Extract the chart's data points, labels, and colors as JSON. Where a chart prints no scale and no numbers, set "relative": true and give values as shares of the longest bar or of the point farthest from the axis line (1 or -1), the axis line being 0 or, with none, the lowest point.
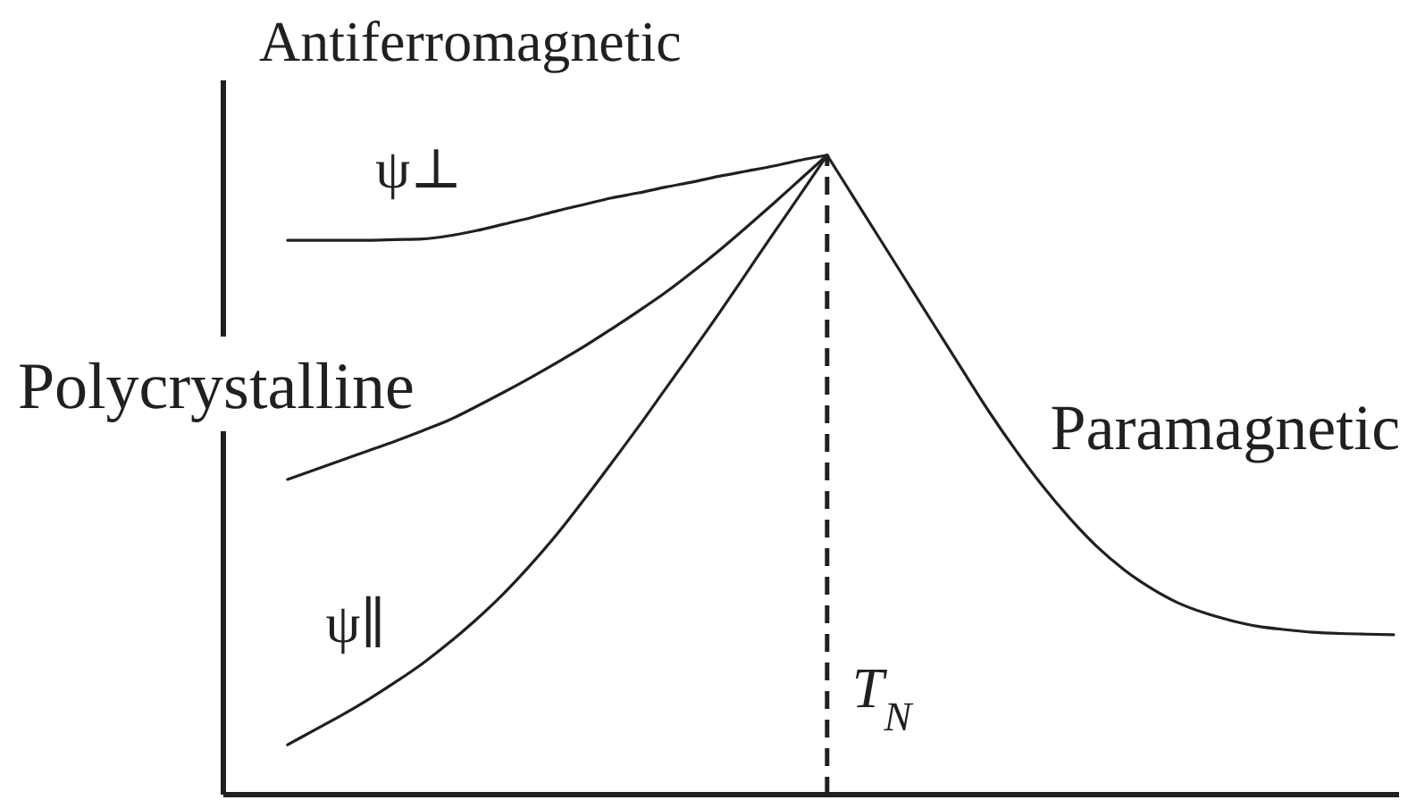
{
  "chart_data": {
    "type": "line",
    "title": "Antiferromagnetic",
    "relative": true,
    "marker": "none",
    "line_style": "solid",
    "categories": [
      null,
      null,
      null,
      null,
      null,
      null,
      null,
      null,
      null,
      null,
      null,
      null,
      null,
      null,
      null,
      null,
      null,
      null,
      null,
      null,
      null,
      null,
      null,
      null,
      null,
      null,
      null,
      null,
      null,
      null,
      null,
      null,
      null,
      null,
      null,
      null,
      null,
      null,
      null,
      null,
      null,
      null
    ],
    "series": [
      {
        "name": "ψ⊥",
        "color": "#231f20",
        "values": [
          0.867,
          0.867,
          0.867,
          0.867,
          0.868,
          0.869,
          0.874,
          0.882,
          0.892,
          0.902,
          0.913,
          0.923,
          0.933,
          0.941,
          0.95,
          0.958,
          0.967,
          0.975,
          0.983,
          0.992,
          1,
          null,
          null,
          null,
          null,
          null,
          null,
          null,
          null,
          null,
          null,
          null,
          null,
          null,
          null,
          null,
          null,
          null,
          null,
          null,
          null,
          null
        ]
      },
      {
        "name": "Polycrystalline",
        "color": "#231f20",
        "values": [
          0.493,
          0.508,
          0.523,
          0.538,
          0.553,
          0.569,
          0.586,
          0.607,
          0.629,
          0.652,
          0.676,
          0.701,
          0.728,
          0.756,
          0.785,
          0.817,
          0.851,
          0.887,
          0.924,
          0.962,
          1,
          null,
          null,
          null,
          null,
          null,
          null,
          null,
          null,
          null,
          null,
          null,
          null,
          null,
          null,
          null,
          null,
          null,
          null,
          null,
          null,
          null
        ]
      },
      {
        "name": "ψ∥",
        "color": "#231f20",
        "values": [
          0.078,
          0.101,
          0.124,
          0.149,
          0.176,
          0.205,
          0.238,
          0.274,
          0.314,
          0.359,
          0.408,
          0.462,
          0.518,
          0.575,
          0.634,
          0.693,
          0.753,
          0.815,
          0.877,
          0.938,
          1,
          null,
          null,
          null,
          null,
          null,
          null,
          null,
          null,
          null,
          null,
          null,
          null,
          null,
          null,
          null,
          null,
          null,
          null,
          null,
          null,
          null
        ]
      },
      {
        "name": "Paramagnetic",
        "color": "#231f20",
        "values": [
          null,
          null,
          null,
          null,
          null,
          null,
          null,
          null,
          null,
          null,
          null,
          null,
          null,
          null,
          null,
          null,
          null,
          null,
          null,
          null,
          1,
          0.933,
          0.866,
          0.799,
          0.732,
          0.665,
          0.599,
          0.538,
          0.482,
          0.432,
          0.388,
          0.352,
          0.323,
          0.3,
          0.284,
          0.272,
          0.263,
          0.258,
          0.254,
          0.252,
          0.251,
          0.25
        ]
      }
    ],
    "annotations": [
      "T$_{N}$"
    ]
  }
}
